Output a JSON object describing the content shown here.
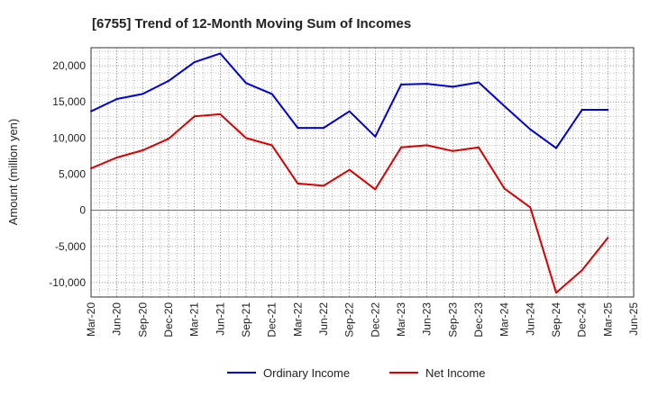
{
  "chart_data": {
    "type": "line",
    "title": "[6755]  Trend of 12-Month Moving Sum of Incomes",
    "xlabel": "",
    "ylabel": "Amount (million yen)",
    "ylim": [
      -12000,
      22500
    ],
    "yticks": [
      -10000,
      -5000,
      0,
      5000,
      10000,
      15000,
      20000
    ],
    "ytick_labels": [
      "-10,000",
      "-5,000",
      "0",
      "5,000",
      "10,000",
      "15,000",
      "20,000"
    ],
    "categories": [
      "Mar-20",
      "Jun-20",
      "Sep-20",
      "Dec-20",
      "Mar-21",
      "Jun-21",
      "Sep-21",
      "Dec-21",
      "Mar-22",
      "Jun-22",
      "Sep-22",
      "Dec-22",
      "Mar-23",
      "Jun-23",
      "Sep-23",
      "Dec-23",
      "Mar-24",
      "Jun-24",
      "Sep-24",
      "Dec-24",
      "Mar-25",
      "Jun-25"
    ],
    "grid": true,
    "legend_position": "bottom-center",
    "series": [
      {
        "name": "Ordinary Income",
        "color": "#0000dd",
        "values": [
          13700,
          15400,
          16100,
          17900,
          20500,
          21700,
          17600,
          16100,
          11400,
          11400,
          13700,
          10200,
          17400,
          17500,
          17100,
          17700,
          14400,
          11200,
          8600,
          13900,
          13900,
          null
        ]
      },
      {
        "name": "Net Income",
        "color": "#dd0000",
        "values": [
          5800,
          7300,
          8300,
          9900,
          13000,
          13300,
          10000,
          9000,
          3700,
          3400,
          5600,
          2900,
          8700,
          9000,
          8200,
          8700,
          3000,
          400,
          -11400,
          -8300,
          -3800,
          null
        ]
      }
    ]
  }
}
